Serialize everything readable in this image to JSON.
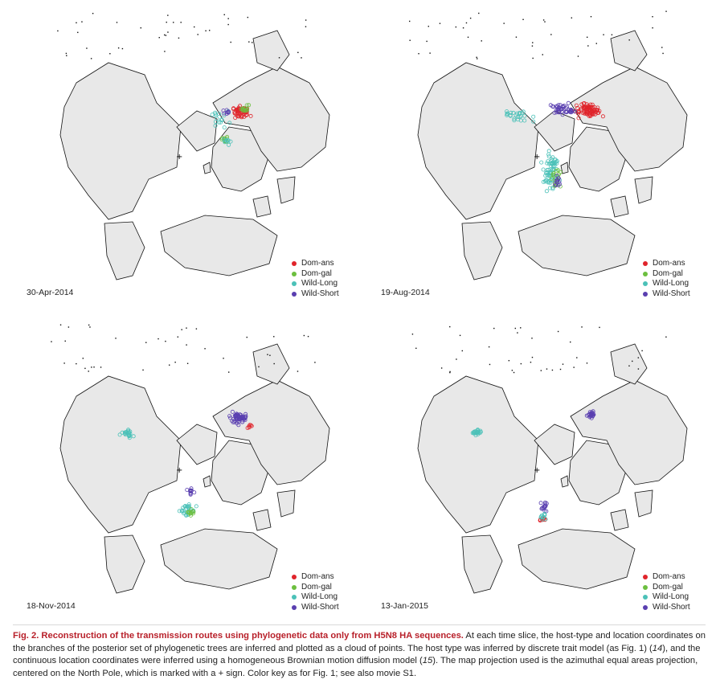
{
  "colors": {
    "dom_ans": "#e0242b",
    "dom_gal": "#6cbf3f",
    "wild_long": "#4bc1b8",
    "wild_short": "#5a3fb0",
    "land": "#e8e8e8",
    "coast": "#111111"
  },
  "legend": [
    "Dom-ans",
    "Dom-gal",
    "Wild-Long",
    "Wild-Short"
  ],
  "panels": [
    {
      "date": "30-Apr-2014"
    },
    {
      "date": "19-Aug-2014"
    },
    {
      "date": "18-Nov-2014"
    },
    {
      "date": "13-Jan-2015"
    }
  ],
  "caption": {
    "title": "Fig. 2. Reconstruction of the transmission routes using phylogenetic data only from H5N8 HA sequences.",
    "t1": " At each time slice, the host-type and location coordinates on the branches of the posterior set of phylogenetic trees are inferred and plotted as a cloud of points. The host type was inferred by discrete trait model (as Fig. 1) (",
    "ref14": "14",
    "t2": "), and the continuous location coordinates were inferred using a homogeneous Brownian motion diffusion model (",
    "ref15": "15",
    "t3": "). The map projection used is the azimuthal equal areas projection, centered on the North Pole, which is marked with a + sign. Color key as for Fig. 1; see also movie S1."
  }
}
